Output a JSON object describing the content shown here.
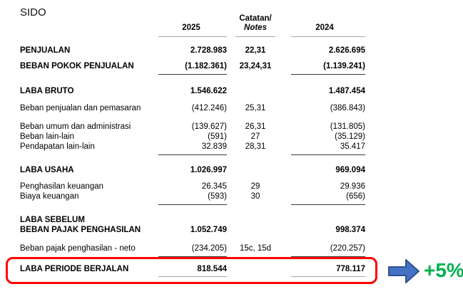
{
  "ticker": "SIDO",
  "table": {
    "header": {
      "col2025": "2025",
      "notes_line1": "Catatan/",
      "notes_line2": "Notes",
      "col2024": "2024"
    },
    "rows": [
      {
        "label": "PENJUALAN",
        "bold": true,
        "v2025": "2.728.983",
        "notes": "22,31",
        "v2024": "2.626.695",
        "gap": 12
      },
      {
        "label": "BEBAN POKOK PENJUALAN",
        "bold": true,
        "v2025": "(1.182.361)",
        "notes": "23,24,31",
        "v2024": "(1.139.241)",
        "gap": 8,
        "rule_below": true
      },
      {
        "label": "LABA BRUTO",
        "bold": true,
        "v2025": "1.546.622",
        "notes": "",
        "v2024": "1.487.454",
        "gap": 16
      },
      {
        "label": "Beban penjualan dan pemasaran",
        "bold": false,
        "v2025": "(412.246)",
        "notes": "25,31",
        "v2024": "(386.843)",
        "gap": 10
      },
      {
        "label": "Beban umum dan administrasi",
        "bold": false,
        "v2025": "(139.627)",
        "notes": "26,31",
        "v2024": "(131.805)",
        "gap": 12
      },
      {
        "label": "Beban lain-lain",
        "bold": false,
        "v2025": "(591)",
        "notes": "27",
        "v2024": "(35.129)",
        "gap": 0
      },
      {
        "label": "Pendapatan lain-lain",
        "bold": false,
        "v2025": "32.839",
        "notes": "28,31",
        "v2024": "35.417",
        "gap": 0,
        "rule_below": true
      },
      {
        "label": "LABA USAHA",
        "bold": true,
        "v2025": "1.026.997",
        "notes": "",
        "v2024": "969.094",
        "gap": 14
      },
      {
        "label": "Penghasilan keuangan",
        "bold": false,
        "v2025": "26.345",
        "notes": "29",
        "v2024": "29.936",
        "gap": 9
      },
      {
        "label": "Biaya keuangan",
        "bold": false,
        "v2025": "(593)",
        "notes": "30",
        "v2024": "(656)",
        "gap": 0,
        "rule_below": true
      },
      {
        "label": "LABA SEBELUM",
        "label2": "BEBAN PAJAK PENGHASILAN",
        "bold": true,
        "v2025": "1.052.749",
        "notes": "",
        "v2024": "998.374",
        "gap": 14
      },
      {
        "label": "Beban pajak penghasilan - neto",
        "bold": false,
        "v2025": "(234.205)",
        "notes": "15c, 15d",
        "v2024": "(220.257)",
        "gap": 12,
        "rule_below": true
      }
    ],
    "total_row": {
      "label": "LABA PERIODE BERJALAN",
      "v2025": "818.544",
      "notes": "",
      "v2024": "778.117"
    }
  },
  "annotation": {
    "change_label": "+5%",
    "change_color": "#00B050",
    "arrow_fill": "#4472C4",
    "arrow_stroke": "#2F528F",
    "highlight_color": "#FF0000"
  }
}
